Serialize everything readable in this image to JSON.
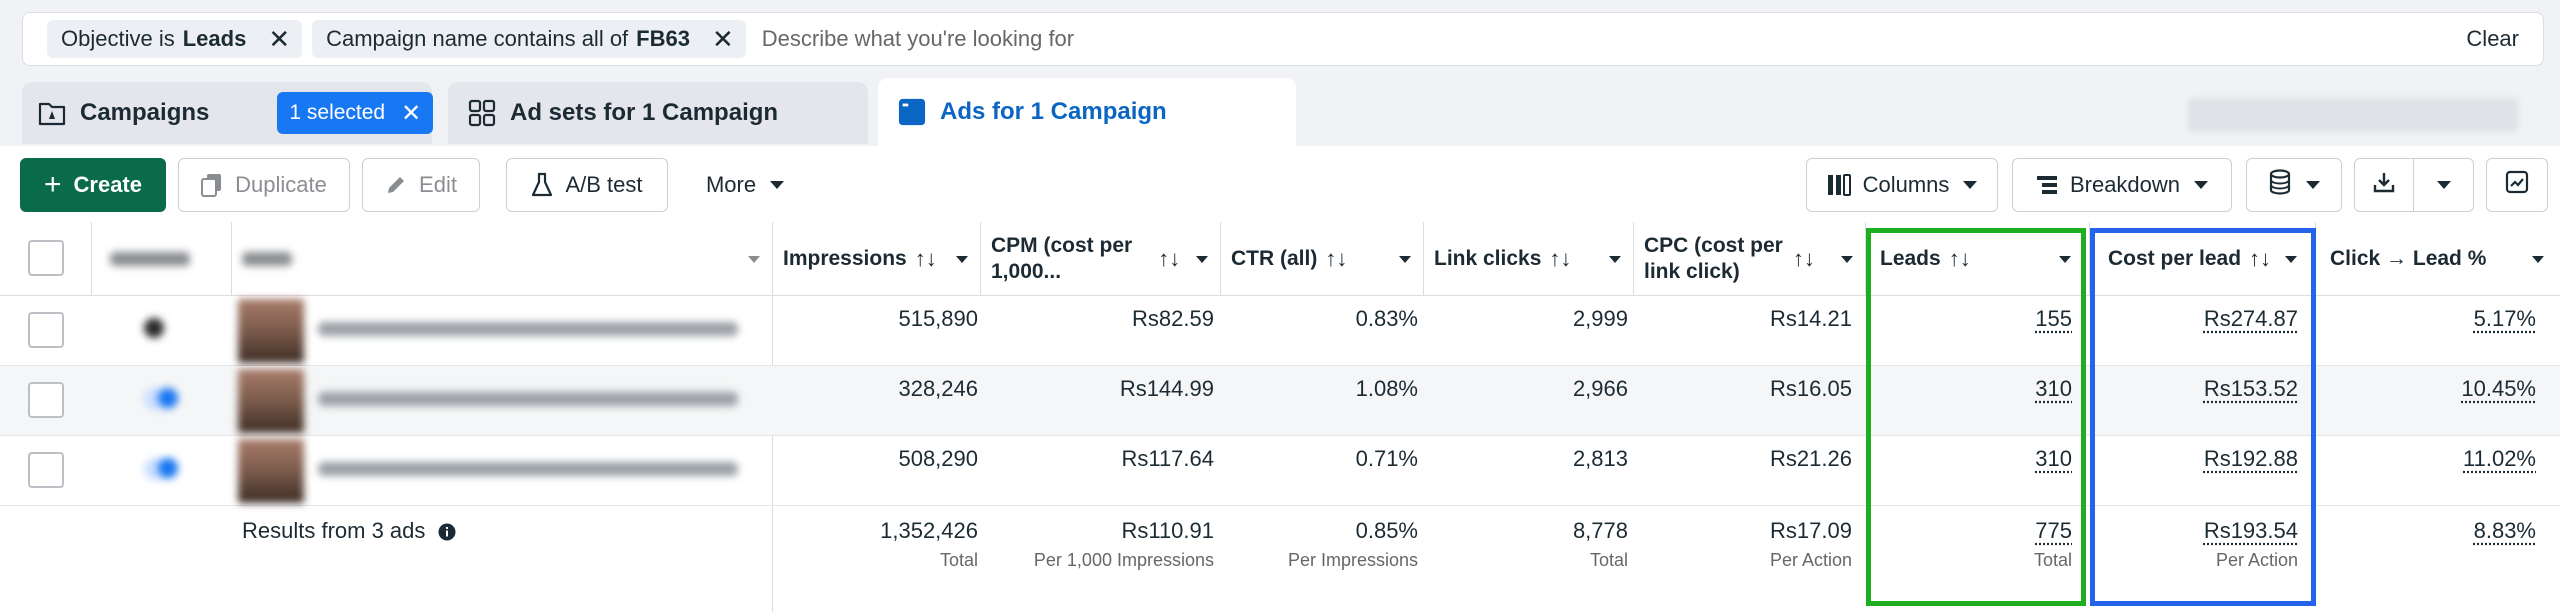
{
  "filters": {
    "chip1": {
      "label": "Objective is",
      "value": "Leads"
    },
    "chip2": {
      "label": "Campaign name contains all of",
      "value": "FB63"
    },
    "placeholder": "Describe what you're looking for",
    "clear": "Clear"
  },
  "tabs": {
    "campaigns": "Campaigns",
    "selected_badge": "1 selected",
    "adsets": "Ad sets for 1 Campaign",
    "ads": "Ads for 1 Campaign"
  },
  "toolbar": {
    "create": "Create",
    "duplicate": "Duplicate",
    "edit": "Edit",
    "ab_test": "A/B test",
    "more": "More",
    "columns": "Columns",
    "breakdown": "Breakdown"
  },
  "table": {
    "headers": {
      "impressions": "Impressions",
      "cpm_line1": "CPM (cost per",
      "cpm_line2": "1,000...",
      "ctr": "CTR (all)",
      "link_clicks": "Link clicks",
      "cpc_line1": "CPC (cost per",
      "cpc_line2": "link click)",
      "leads": "Leads",
      "cost_per_lead": "Cost per lead",
      "click_lead": "Click → Lead %",
      "sort_glyph": "↑↓"
    },
    "rows": [
      {
        "impressions": "515,890",
        "cpm": "Rs82.59",
        "ctr": "0.83%",
        "link_clicks": "2,999",
        "cpc": "Rs14.21",
        "leads": "155",
        "cost_per_lead": "Rs274.87",
        "click_lead": "5.17%"
      },
      {
        "impressions": "328,246",
        "cpm": "Rs144.99",
        "ctr": "1.08%",
        "link_clicks": "2,966",
        "cpc": "Rs16.05",
        "leads": "310",
        "cost_per_lead": "Rs153.52",
        "click_lead": "10.45%"
      },
      {
        "impressions": "508,290",
        "cpm": "Rs117.64",
        "ctr": "0.71%",
        "link_clicks": "2,813",
        "cpc": "Rs21.26",
        "leads": "310",
        "cost_per_lead": "Rs192.88",
        "click_lead": "11.02%"
      }
    ],
    "totals": {
      "label": "Results from 3 ads",
      "impressions": "1,352,426",
      "impressions_sub": "Total",
      "cpm": "Rs110.91",
      "cpm_sub": "Per 1,000 Impressions",
      "ctr": "0.85%",
      "ctr_sub": "Per Impressions",
      "link_clicks": "8,778",
      "link_clicks_sub": "Total",
      "cpc": "Rs17.09",
      "cpc_sub": "Per Action",
      "leads": "775",
      "leads_sub": "Total",
      "cost_per_lead": "Rs193.54",
      "cost_per_lead_sub": "Per Action",
      "click_lead": "8.83%"
    }
  },
  "colors": {
    "create_button": "#0a6b4a",
    "active_tab": "#0a66c2",
    "badge": "#1877f2",
    "highlight_leads": "#1fae1f",
    "highlight_cost_per_lead": "#2563eb"
  }
}
